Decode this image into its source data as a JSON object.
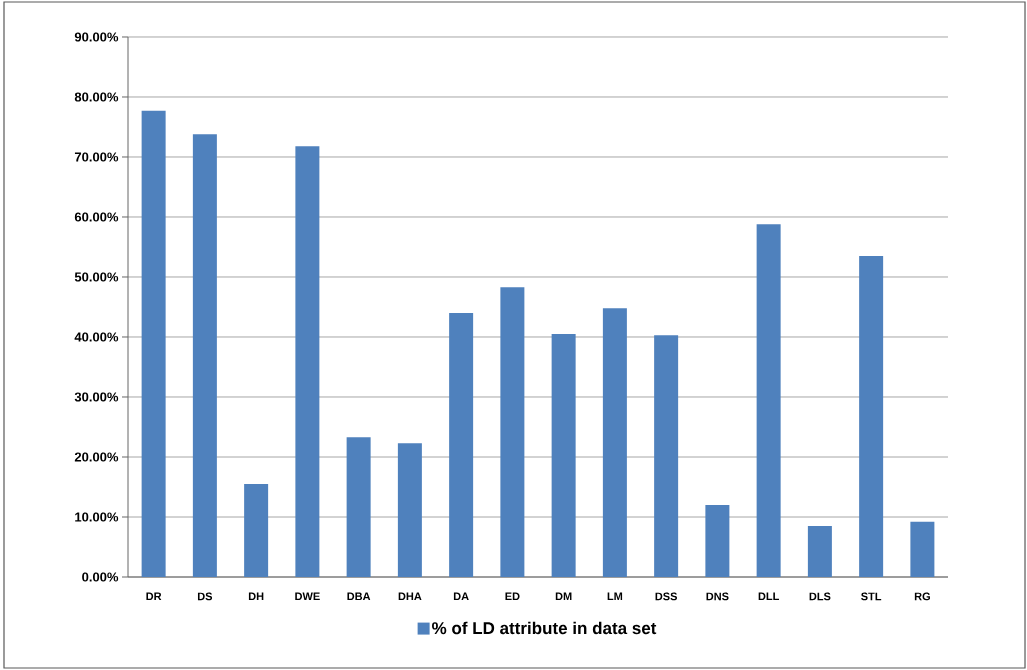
{
  "chart_data": {
    "type": "bar",
    "categories": [
      "DR",
      "DS",
      "DH",
      "DWE",
      "DBA",
      "DHA",
      "DA",
      "ED",
      "DM",
      "LM",
      "DSS",
      "DNS",
      "DLL",
      "DLS",
      "STL",
      "RG"
    ],
    "series": [
      {
        "name": "% of LD attribute in data set",
        "color": "#4f81bd",
        "values": [
          77.7,
          73.8,
          15.5,
          71.8,
          23.3,
          22.3,
          44.0,
          48.3,
          40.5,
          44.8,
          40.3,
          12.0,
          58.8,
          8.5,
          53.5,
          9.2
        ]
      }
    ],
    "ylim": [
      0,
      90
    ],
    "yticks": [
      {
        "value": 0,
        "label": "0.00%"
      },
      {
        "value": 10,
        "label": "10.00%"
      },
      {
        "value": 20,
        "label": "20.00%"
      },
      {
        "value": 30,
        "label": "30.00%"
      },
      {
        "value": 40,
        "label": "40.00%"
      },
      {
        "value": 50,
        "label": "50.00%"
      },
      {
        "value": 60,
        "label": "60.00%"
      },
      {
        "value": 70,
        "label": "70.00%"
      },
      {
        "value": 80,
        "label": "80.00%"
      },
      {
        "value": 90,
        "label": "90.00%"
      }
    ],
    "grid": "y",
    "legend": "bottom"
  }
}
